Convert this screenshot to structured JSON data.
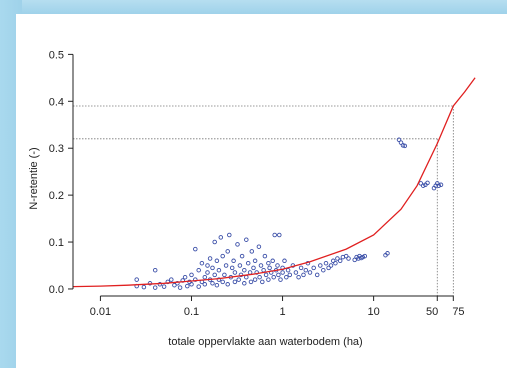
{
  "chart_data": {
    "type": "scatter",
    "title": "",
    "xlabel": "totale oppervlakte aan waterbodem (ha)",
    "ylabel": "N-retentie (-)",
    "x_scale": "log",
    "xlim": [
      0.005,
      140
    ],
    "ylim": [
      -0.015,
      0.52
    ],
    "x_ticks": [
      {
        "value": 0.01,
        "label": "0.01"
      },
      {
        "value": 0.1,
        "label": "0.1"
      },
      {
        "value": 1,
        "label": "1"
      },
      {
        "value": 10,
        "label": "10"
      },
      {
        "value": 50,
        "label": "50"
      },
      {
        "value": 75,
        "label": "75"
      }
    ],
    "y_ticks": [
      {
        "value": 0.0,
        "label": "0.0"
      },
      {
        "value": 0.1,
        "label": "0.1"
      },
      {
        "value": 0.2,
        "label": "0.2"
      },
      {
        "value": 0.3,
        "label": "0.3"
      },
      {
        "value": 0.4,
        "label": "0.4"
      },
      {
        "value": 0.5,
        "label": "0.5"
      }
    ],
    "reference_lines": [
      {
        "x": 50,
        "y": 0.32
      },
      {
        "x": 75,
        "y": 0.39
      }
    ],
    "grid": false,
    "colors": {
      "points": "#3b4fa8",
      "curve": "#e02020",
      "reference": "#777777",
      "axis": "#222222"
    },
    "series": [
      {
        "type": "line",
        "x": [
          0.005,
          0.01,
          0.02,
          0.05,
          0.1,
          0.2,
          0.5,
          1,
          2,
          5,
          10,
          20,
          30,
          50,
          75,
          100,
          130
        ],
        "y": [
          0.005,
          0.006,
          0.008,
          0.012,
          0.017,
          0.022,
          0.032,
          0.042,
          0.058,
          0.085,
          0.115,
          0.17,
          0.22,
          0.31,
          0.39,
          0.42,
          0.45
        ]
      },
      {
        "type": "scatter",
        "points": [
          [
            0.025,
            0.006
          ],
          [
            0.025,
            0.02
          ],
          [
            0.03,
            0.004
          ],
          [
            0.035,
            0.012
          ],
          [
            0.04,
            0.003
          ],
          [
            0.04,
            0.04
          ],
          [
            0.045,
            0.01
          ],
          [
            0.05,
            0.005
          ],
          [
            0.055,
            0.015
          ],
          [
            0.06,
            0.02
          ],
          [
            0.065,
            0.008
          ],
          [
            0.07,
            0.012
          ],
          [
            0.075,
            0.003
          ],
          [
            0.08,
            0.018
          ],
          [
            0.085,
            0.025
          ],
          [
            0.09,
            0.006
          ],
          [
            0.095,
            0.015
          ],
          [
            0.1,
            0.01
          ],
          [
            0.1,
            0.03
          ],
          [
            0.11,
            0.02
          ],
          [
            0.11,
            0.085
          ],
          [
            0.12,
            0.005
          ],
          [
            0.12,
            0.04
          ],
          [
            0.13,
            0.015
          ],
          [
            0.13,
            0.055
          ],
          [
            0.14,
            0.025
          ],
          [
            0.14,
            0.01
          ],
          [
            0.15,
            0.035
          ],
          [
            0.15,
            0.05
          ],
          [
            0.16,
            0.02
          ],
          [
            0.16,
            0.065
          ],
          [
            0.17,
            0.012
          ],
          [
            0.17,
            0.045
          ],
          [
            0.18,
            0.03
          ],
          [
            0.18,
            0.1
          ],
          [
            0.19,
            0.008
          ],
          [
            0.19,
            0.06
          ],
          [
            0.2,
            0.02
          ],
          [
            0.2,
            0.04
          ],
          [
            0.21,
            0.11
          ],
          [
            0.22,
            0.015
          ],
          [
            0.22,
            0.07
          ],
          [
            0.23,
            0.03
          ],
          [
            0.24,
            0.05
          ],
          [
            0.25,
            0.01
          ],
          [
            0.25,
            0.08
          ],
          [
            0.26,
            0.115
          ],
          [
            0.27,
            0.025
          ],
          [
            0.28,
            0.045
          ],
          [
            0.29,
            0.06
          ],
          [
            0.3,
            0.015
          ],
          [
            0.3,
            0.035
          ],
          [
            0.32,
            0.095
          ],
          [
            0.33,
            0.02
          ],
          [
            0.34,
            0.05
          ],
          [
            0.35,
            0.03
          ],
          [
            0.36,
            0.07
          ],
          [
            0.38,
            0.012
          ],
          [
            0.38,
            0.04
          ],
          [
            0.4,
            0.025
          ],
          [
            0.4,
            0.105
          ],
          [
            0.42,
            0.055
          ],
          [
            0.44,
            0.035
          ],
          [
            0.45,
            0.015
          ],
          [
            0.46,
            0.08
          ],
          [
            0.48,
            0.045
          ],
          [
            0.5,
            0.02
          ],
          [
            0.5,
            0.06
          ],
          [
            0.52,
            0.035
          ],
          [
            0.55,
            0.09
          ],
          [
            0.56,
            0.025
          ],
          [
            0.58,
            0.05
          ],
          [
            0.6,
            0.015
          ],
          [
            0.62,
            0.04
          ],
          [
            0.64,
            0.07
          ],
          [
            0.66,
            0.03
          ],
          [
            0.7,
            0.02
          ],
          [
            0.7,
            0.055
          ],
          [
            0.72,
            0.045
          ],
          [
            0.75,
            0.035
          ],
          [
            0.78,
            0.06
          ],
          [
            0.8,
            0.025
          ],
          [
            0.82,
            0.115
          ],
          [
            0.85,
            0.04
          ],
          [
            0.88,
            0.05
          ],
          [
            0.9,
            0.03
          ],
          [
            0.92,
            0.115
          ],
          [
            0.95,
            0.02
          ],
          [
            1.0,
            0.045
          ],
          [
            1.0,
            0.035
          ],
          [
            1.05,
            0.06
          ],
          [
            1.1,
            0.025
          ],
          [
            1.15,
            0.04
          ],
          [
            1.2,
            0.03
          ],
          [
            1.3,
            0.05
          ],
          [
            1.4,
            0.035
          ],
          [
            1.5,
            0.025
          ],
          [
            1.6,
            0.045
          ],
          [
            1.7,
            0.03
          ],
          [
            1.8,
            0.04
          ],
          [
            1.9,
            0.055
          ],
          [
            2.0,
            0.035
          ],
          [
            2.2,
            0.045
          ],
          [
            2.4,
            0.03
          ],
          [
            2.6,
            0.05
          ],
          [
            2.8,
            0.04
          ],
          [
            3.0,
            0.055
          ],
          [
            3.2,
            0.045
          ],
          [
            3.4,
            0.05
          ],
          [
            3.6,
            0.06
          ],
          [
            3.8,
            0.055
          ],
          [
            4.0,
            0.065
          ],
          [
            4.3,
            0.06
          ],
          [
            4.6,
            0.068
          ],
          [
            5.0,
            0.07
          ],
          [
            5.3,
            0.065
          ],
          [
            6.2,
            0.062
          ],
          [
            6.5,
            0.068
          ],
          [
            6.8,
            0.065
          ],
          [
            7.0,
            0.07
          ],
          [
            7.3,
            0.066
          ],
          [
            7.6,
            0.068
          ],
          [
            8.0,
            0.07
          ],
          [
            13.5,
            0.072
          ],
          [
            14.2,
            0.076
          ],
          [
            19.0,
            0.318
          ],
          [
            20.0,
            0.312
          ],
          [
            21.0,
            0.306
          ],
          [
            22.0,
            0.305
          ],
          [
            33.0,
            0.225
          ],
          [
            35.0,
            0.22
          ],
          [
            37.0,
            0.222
          ],
          [
            39.0,
            0.226
          ],
          [
            46.0,
            0.215
          ],
          [
            48.0,
            0.22
          ],
          [
            50.0,
            0.225
          ],
          [
            52.0,
            0.22
          ],
          [
            55.0,
            0.222
          ]
        ]
      }
    ]
  }
}
